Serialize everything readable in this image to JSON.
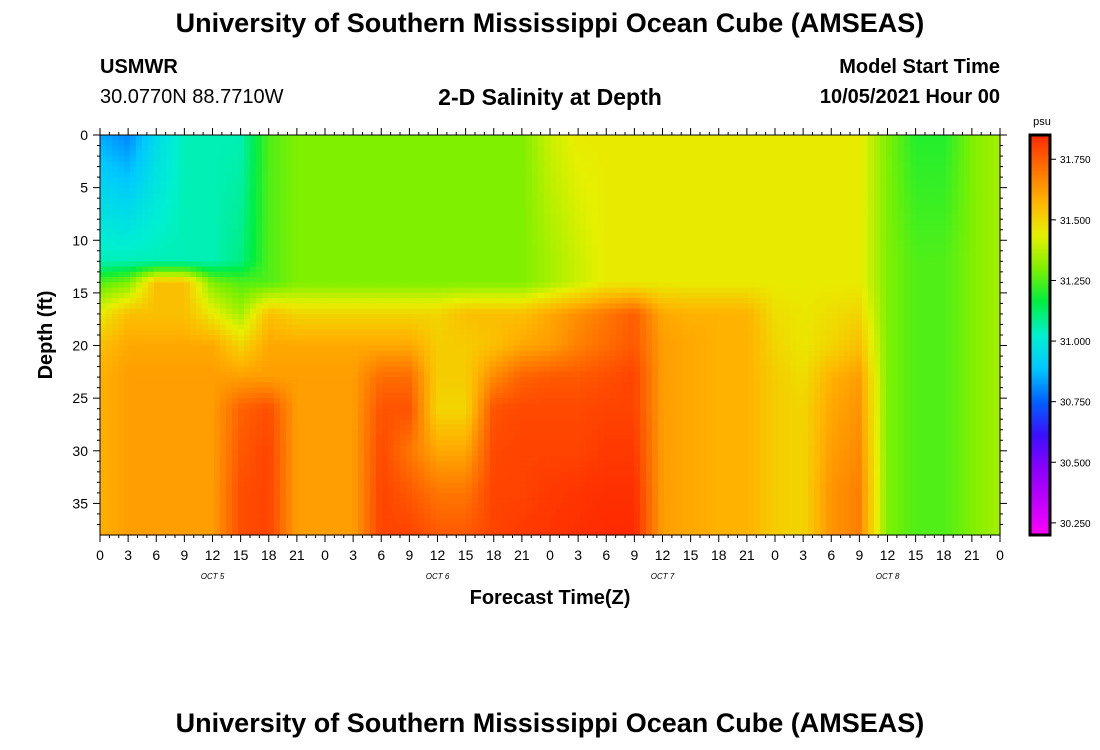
{
  "header": {
    "title": "University of Southern Mississippi Ocean Cube (AMSEAS)",
    "station": "USMWR",
    "coordinates": "30.0770N  88.7710W",
    "plot_title": "2-D Salinity at Depth",
    "model_start_label": "Model Start Time",
    "model_start_value": "10/05/2021 Hour 00"
  },
  "footer": {
    "title": "University of Southern Mississippi Ocean Cube (AMSEAS)"
  },
  "colors": {
    "background": "#ffffff",
    "text": "#000000",
    "colorbar_stops": [
      "#ff00ff",
      "#c000ff",
      "#8a00ff",
      "#3a10ff",
      "#0060ff",
      "#00c8ff",
      "#00f0d0",
      "#00ee40",
      "#7ef000",
      "#e6f000",
      "#ffb400",
      "#ff7000",
      "#ff2a00"
    ]
  },
  "chart_data": {
    "type": "heatmap",
    "title": "2-D Salinity at Depth",
    "xlabel": "Forecast Time(Z)",
    "ylabel": "Depth (ft)",
    "x_hours_range": [
      0,
      96
    ],
    "ylim": [
      0,
      38
    ],
    "y_ticks": [
      "0",
      "5",
      "10",
      "15",
      "20",
      "25",
      "30",
      "35"
    ],
    "x_tick_labels": [
      "0",
      "3",
      "6",
      "9",
      "12",
      "15",
      "18",
      "21",
      "0",
      "3",
      "6",
      "9",
      "12",
      "15",
      "18",
      "21",
      "0",
      "3",
      "6",
      "9",
      "12",
      "15",
      "18",
      "21",
      "0",
      "3",
      "6",
      "9",
      "12",
      "15",
      "18",
      "21",
      "0"
    ],
    "day_labels": [
      {
        "hour": 12,
        "label": "OCT 5"
      },
      {
        "hour": 36,
        "label": "OCT 6"
      },
      {
        "hour": 60,
        "label": "OCT 7"
      },
      {
        "hour": 84,
        "label": "OCT 8"
      }
    ],
    "colorbar": {
      "unit": "psu",
      "range": [
        30.2,
        31.85
      ],
      "ticks": [
        "30.250",
        "30.500",
        "30.750",
        "31.000",
        "31.250",
        "31.500",
        "31.750"
      ]
    },
    "depths_ft": [
      0,
      12,
      14,
      17,
      20,
      23,
      26,
      30,
      34,
      38
    ],
    "hours": [
      0,
      3,
      6,
      9,
      12,
      15,
      18,
      21,
      24,
      27,
      30,
      33,
      36,
      39,
      42,
      45,
      48,
      51,
      54,
      57,
      60,
      63,
      66,
      69,
      72,
      75,
      78,
      81,
      84,
      87,
      90,
      93,
      96
    ],
    "salinity_psu": [
      [
        30.85,
        30.8,
        30.95,
        31.05,
        31.05,
        31.05,
        31.25,
        31.3,
        31.3,
        31.3,
        31.3,
        31.3,
        31.3,
        31.3,
        31.3,
        31.3,
        31.4,
        31.45,
        31.45,
        31.45,
        31.45,
        31.45,
        31.45,
        31.45,
        31.45,
        31.45,
        31.45,
        31.45,
        31.3,
        31.2,
        31.2,
        31.3,
        31.35
      ],
      [
        31.05,
        31.05,
        31.05,
        31.05,
        31.05,
        31.1,
        31.25,
        31.3,
        31.3,
        31.3,
        31.3,
        31.3,
        31.3,
        31.3,
        31.3,
        31.3,
        31.35,
        31.4,
        31.45,
        31.45,
        31.45,
        31.45,
        31.45,
        31.45,
        31.45,
        31.45,
        31.45,
        31.45,
        31.3,
        31.25,
        31.25,
        31.3,
        31.35
      ],
      [
        31.25,
        31.3,
        31.55,
        31.55,
        31.3,
        31.25,
        31.25,
        31.3,
        31.3,
        31.3,
        31.3,
        31.3,
        31.3,
        31.3,
        31.3,
        31.3,
        31.35,
        31.4,
        31.45,
        31.45,
        31.45,
        31.45,
        31.45,
        31.45,
        31.45,
        31.45,
        31.45,
        31.45,
        31.3,
        31.25,
        31.25,
        31.3,
        31.35
      ],
      [
        31.45,
        31.55,
        31.55,
        31.55,
        31.45,
        31.35,
        31.55,
        31.5,
        31.5,
        31.5,
        31.5,
        31.5,
        31.5,
        31.55,
        31.55,
        31.55,
        31.6,
        31.65,
        31.7,
        31.75,
        31.6,
        31.58,
        31.58,
        31.58,
        31.48,
        31.46,
        31.48,
        31.5,
        31.3,
        31.25,
        31.25,
        31.3,
        31.35
      ],
      [
        31.55,
        31.6,
        31.6,
        31.6,
        31.6,
        31.5,
        31.6,
        31.6,
        31.6,
        31.6,
        31.6,
        31.6,
        31.52,
        31.52,
        31.55,
        31.6,
        31.62,
        31.68,
        31.72,
        31.76,
        31.62,
        31.6,
        31.58,
        31.58,
        31.5,
        31.46,
        31.5,
        31.55,
        31.3,
        31.25,
        31.25,
        31.3,
        31.35
      ],
      [
        31.58,
        31.62,
        31.62,
        31.62,
        31.62,
        31.62,
        31.62,
        31.62,
        31.62,
        31.62,
        31.72,
        31.72,
        31.52,
        31.52,
        31.66,
        31.74,
        31.76,
        31.76,
        31.78,
        31.8,
        31.62,
        31.6,
        31.58,
        31.58,
        31.52,
        31.48,
        31.58,
        31.62,
        31.3,
        31.25,
        31.25,
        31.3,
        31.35
      ],
      [
        31.58,
        31.62,
        31.62,
        31.62,
        31.62,
        31.74,
        31.78,
        31.62,
        31.62,
        31.62,
        31.77,
        31.77,
        31.5,
        31.5,
        31.77,
        31.79,
        31.79,
        31.79,
        31.8,
        31.8,
        31.62,
        31.6,
        31.58,
        31.58,
        31.52,
        31.5,
        31.6,
        31.64,
        31.3,
        31.25,
        31.25,
        31.3,
        31.35
      ],
      [
        31.58,
        31.62,
        31.62,
        31.62,
        31.62,
        31.76,
        31.8,
        31.62,
        31.62,
        31.62,
        31.79,
        31.7,
        31.6,
        31.6,
        31.79,
        31.8,
        31.8,
        31.8,
        31.82,
        31.82,
        31.62,
        31.6,
        31.58,
        31.58,
        31.52,
        31.5,
        31.62,
        31.66,
        31.3,
        31.25,
        31.25,
        31.3,
        31.35
      ],
      [
        31.58,
        31.62,
        31.62,
        31.62,
        31.62,
        31.78,
        31.8,
        31.62,
        31.62,
        31.62,
        31.8,
        31.76,
        31.7,
        31.7,
        31.8,
        31.8,
        31.82,
        31.83,
        31.84,
        31.84,
        31.62,
        31.6,
        31.58,
        31.58,
        31.52,
        31.5,
        31.64,
        31.68,
        31.3,
        31.25,
        31.25,
        31.3,
        31.35
      ],
      [
        31.58,
        31.62,
        31.62,
        31.62,
        31.62,
        31.78,
        31.8,
        31.62,
        31.62,
        31.62,
        31.8,
        31.8,
        31.76,
        31.76,
        31.8,
        31.82,
        31.83,
        31.84,
        31.85,
        31.85,
        31.62,
        31.6,
        31.58,
        31.58,
        31.52,
        31.5,
        31.64,
        31.68,
        31.3,
        31.25,
        31.25,
        31.3,
        31.35
      ]
    ]
  }
}
